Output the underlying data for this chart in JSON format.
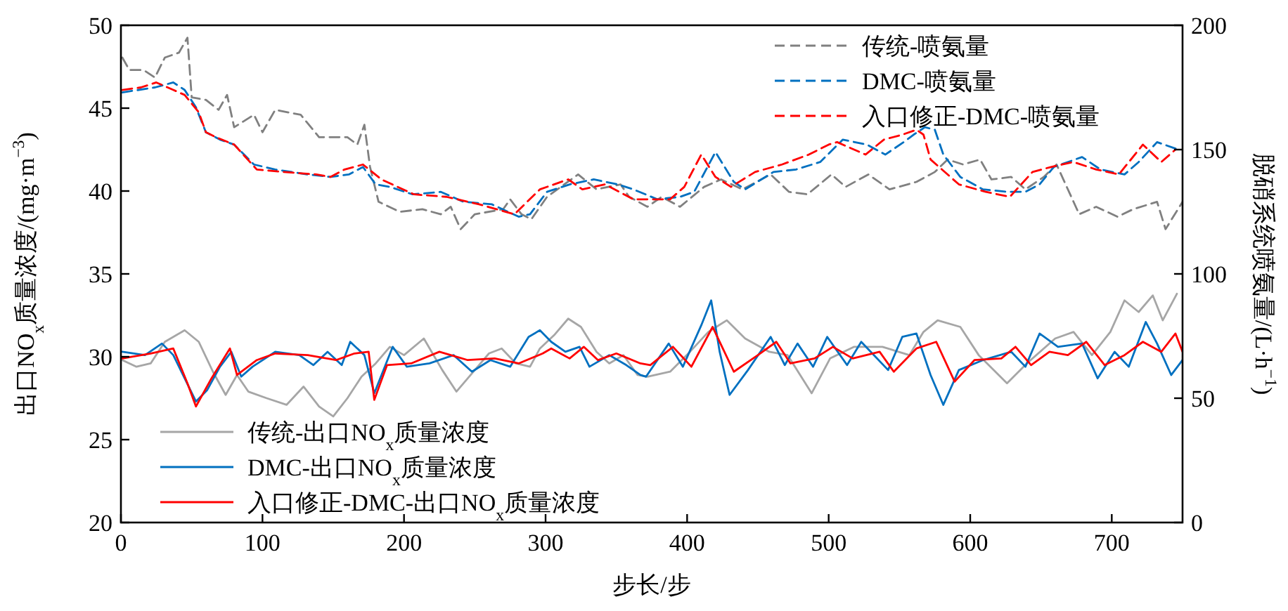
{
  "chart_data": {
    "type": "line",
    "xlabel": "步长/步",
    "ylabel": "出口NO$_{x}$质量浓度/(mg·m$^{−3}$)",
    "y2label": "脱硝系统喷氨量/(L·h$^{−1}$)",
    "xlim": [
      0,
      750
    ],
    "xticks": [
      0,
      100,
      200,
      300,
      400,
      500,
      600,
      700
    ],
    "ylim": [
      20,
      50
    ],
    "yticks": [
      20,
      25,
      30,
      35,
      40,
      45,
      50
    ],
    "y2lim": [
      0,
      200
    ],
    "y2ticks": [
      0,
      50,
      100,
      150,
      200
    ],
    "legend": "bottom left",
    "grid": false,
    "marker": "none",
    "series": [
      {
        "name": "传统-喷氨量",
        "color": "#808080",
        "axis": "y2",
        "line_style": "dashed",
        "x": [
          1,
          6,
          16,
          24,
          31,
          41,
          47,
          50,
          60,
          69,
          75,
          80,
          94,
          100,
          109,
          127,
          140,
          160,
          167,
          172,
          176,
          182,
          197,
          213,
          226,
          233,
          240,
          250,
          270,
          275,
          283,
          290,
          301,
          323,
          336,
          353,
          359,
          372,
          382,
          395,
          412,
          424,
          439,
          459,
          472,
          485,
          502,
          512,
          528,
          543,
          562,
          575,
          584,
          595,
          607,
          615,
          629,
          639,
          652,
          661,
          677,
          689,
          704,
          715,
          732,
          738,
          750
        ],
        "values": [
          187,
          182,
          182,
          179,
          187,
          189,
          195,
          171,
          170,
          166,
          172,
          159,
          164,
          157,
          166,
          164,
          155,
          155,
          152,
          160,
          143,
          129,
          125,
          126,
          124,
          127,
          118,
          124,
          126,
          130,
          124,
          122,
          131,
          140,
          134,
          136,
          131,
          127,
          131,
          127,
          135,
          138,
          134,
          140,
          133,
          132,
          140,
          135,
          140,
          134,
          137,
          141,
          146,
          144,
          146,
          138,
          139,
          134,
          139,
          144,
          124,
          127,
          123,
          126,
          129,
          118,
          129
        ]
      },
      {
        "name": "DMC-喷氨量",
        "color": "#0070c0",
        "axis": "y2",
        "line_style": "dashed",
        "x": [
          1,
          24,
          37,
          45,
          53,
          60,
          70,
          80,
          94,
          109,
          132,
          148,
          161,
          171,
          180,
          190,
          206,
          226,
          242,
          262,
          281,
          289,
          301,
          317,
          334,
          351,
          362,
          379,
          395,
          405,
          420,
          433,
          441,
          461,
          477,
          494,
          510,
          527,
          540,
          553,
          560,
          568,
          575,
          581,
          593,
          609,
          626,
          639,
          649,
          659,
          679,
          692,
          709,
          719,
          732,
          747
        ],
        "values": [
          173,
          175,
          177,
          174,
          167,
          157,
          154,
          152,
          144,
          142,
          140,
          139,
          140,
          143,
          136,
          135,
          132,
          133,
          129,
          128,
          123,
          124,
          133,
          136,
          138,
          136,
          134,
          130,
          131,
          133,
          149,
          137,
          134,
          141,
          142,
          145,
          154,
          152,
          148,
          153,
          156,
          159,
          158,
          148,
          139,
          134,
          133,
          133,
          136,
          143,
          147,
          142,
          140,
          145,
          153,
          150
        ]
      },
      {
        "name": "入口修正-DMC-喷氨量",
        "color": "#ff0000",
        "axis": "y2",
        "line_style": "dashed",
        "x": [
          1,
          14,
          25,
          37,
          45,
          55,
          60,
          67,
          80,
          96,
          115,
          138,
          148,
          158,
          171,
          184,
          207,
          230,
          253,
          278,
          296,
          316,
          326,
          342,
          362,
          369,
          388,
          398,
          410,
          420,
          431,
          448,
          467,
          486,
          500,
          506,
          526,
          539,
          552,
          562,
          567,
          572,
          592,
          611,
          628,
          644,
          657,
          673,
          689,
          705,
          722,
          735,
          745
        ],
        "values": [
          174,
          175,
          177,
          174,
          172,
          165,
          157,
          155,
          152,
          142,
          141,
          140,
          139,
          142,
          144,
          138,
          132,
          131,
          128,
          124,
          134,
          138,
          134,
          136,
          130,
          130,
          130,
          135,
          148,
          139,
          135,
          141,
          144,
          148,
          152,
          153,
          148,
          154,
          156,
          158,
          156,
          146,
          136,
          133,
          131,
          141,
          143,
          145,
          142,
          140,
          152,
          145,
          150
        ]
      },
      {
        "name": "传统-出口NO$_{x}$质量浓度",
        "color": "#a6a6a6",
        "axis": "y",
        "line_style": "solid",
        "x": [
          1,
          11,
          21,
          31,
          45,
          55,
          65,
          74,
          82,
          90,
          103,
          117,
          129,
          140,
          150,
          160,
          170,
          180,
          190,
          200,
          214,
          227,
          237,
          246,
          260,
          269,
          279,
          289,
          296,
          306,
          316,
          325,
          336,
          345,
          355,
          365,
          372,
          388,
          402,
          415,
          428,
          441,
          458,
          471,
          488,
          501,
          518,
          538,
          557,
          567,
          577,
          593,
          606,
          626,
          640,
          660,
          673,
          686,
          699,
          709,
          719,
          729,
          736,
          746
        ],
        "values": [
          29.8,
          29.4,
          29.6,
          30.9,
          31.6,
          30.9,
          29.1,
          27.7,
          28.9,
          27.9,
          27.5,
          27.1,
          28.2,
          27.0,
          26.4,
          27.5,
          28.8,
          29.6,
          30.6,
          30.1,
          31.1,
          29.2,
          27.9,
          28.8,
          30.2,
          30.5,
          29.6,
          29.4,
          30.5,
          31.3,
          32.3,
          31.8,
          30.3,
          29.6,
          30.1,
          28.9,
          28.8,
          29.1,
          30.3,
          31.5,
          32.2,
          31.1,
          30.3,
          30.1,
          27.8,
          29.9,
          30.6,
          30.6,
          30.1,
          31.5,
          32.2,
          31.8,
          30.1,
          28.4,
          29.6,
          31.1,
          31.5,
          30.1,
          31.5,
          33.4,
          32.7,
          33.7,
          32.2,
          33.8
        ]
      },
      {
        "name": "DMC-出口NO$_{x}$质量浓度",
        "color": "#0070c0",
        "axis": "y",
        "line_style": "solid",
        "x": [
          1,
          17,
          29,
          37,
          45,
          53,
          61,
          70,
          78,
          85,
          93,
          109,
          126,
          136,
          146,
          156,
          162,
          172,
          179,
          192,
          202,
          218,
          235,
          248,
          261,
          275,
          288,
          296,
          304,
          314,
          324,
          331,
          345,
          357,
          367,
          371,
          387,
          397,
          410,
          417,
          423,
          430,
          443,
          459,
          469,
          478,
          489,
          499,
          513,
          523,
          542,
          552,
          562,
          572,
          581,
          592,
          609,
          629,
          639,
          649,
          662,
          679,
          690,
          702,
          712,
          724,
          732,
          742,
          750
        ],
        "values": [
          30.3,
          30.1,
          30.8,
          30.1,
          28.7,
          27.3,
          28.0,
          29.4,
          30.3,
          28.8,
          29.4,
          30.3,
          30.1,
          29.5,
          30.3,
          29.5,
          30.9,
          30.1,
          27.8,
          30.6,
          29.4,
          29.6,
          30.1,
          29.1,
          29.8,
          29.4,
          31.2,
          31.6,
          30.9,
          30.3,
          30.6,
          29.4,
          30.1,
          29.5,
          28.9,
          28.8,
          30.8,
          29.4,
          31.9,
          33.4,
          30.3,
          27.7,
          29.2,
          31.2,
          29.5,
          30.8,
          29.4,
          31.2,
          29.5,
          30.9,
          29.2,
          31.2,
          31.4,
          28.9,
          27.1,
          29.2,
          29.8,
          30.3,
          29.4,
          31.4,
          30.6,
          30.8,
          28.7,
          30.3,
          29.4,
          32.1,
          30.8,
          28.9,
          29.8
        ]
      },
      {
        "name": "入口修正-DMC-出口NO$_{x}$质量浓度",
        "color": "#ff0000",
        "axis": "y",
        "line_style": "solid",
        "x": [
          1,
          21,
          37,
          47,
          53,
          64,
          77,
          82,
          96,
          109,
          132,
          152,
          165,
          175,
          179,
          188,
          205,
          225,
          245,
          264,
          281,
          298,
          304,
          317,
          327,
          337,
          350,
          367,
          374,
          390,
          403,
          418,
          433,
          450,
          463,
          473,
          490,
          503,
          517,
          536,
          546,
          562,
          576,
          589,
          603,
          622,
          632,
          643,
          656,
          669,
          682,
          695,
          709,
          722,
          735,
          745,
          750
        ],
        "values": [
          29.9,
          30.2,
          30.5,
          28.4,
          27.0,
          28.7,
          30.5,
          28.9,
          29.8,
          30.2,
          30.1,
          29.8,
          30.2,
          30.3,
          27.4,
          29.5,
          29.6,
          30.3,
          29.8,
          29.9,
          29.6,
          30.2,
          30.5,
          29.9,
          30.6,
          29.8,
          30.2,
          29.6,
          29.5,
          30.6,
          29.4,
          31.8,
          29.1,
          30.1,
          30.9,
          29.6,
          29.9,
          30.6,
          29.9,
          30.3,
          29.1,
          30.5,
          30.9,
          28.5,
          29.8,
          29.9,
          30.6,
          29.5,
          30.3,
          30.1,
          30.9,
          29.5,
          30.1,
          30.9,
          30.3,
          31.4,
          30.3
        ]
      }
    ]
  }
}
